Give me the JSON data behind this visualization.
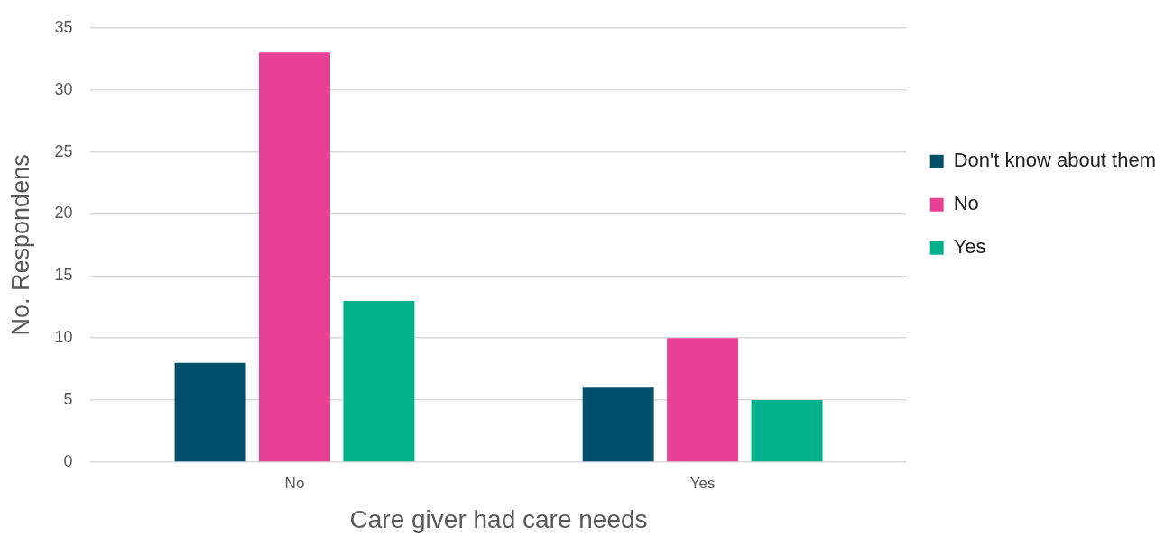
{
  "chart_data": {
    "type": "bar",
    "xlabel": "Care giver had care needs",
    "ylabel": "No. Respondens",
    "categories": [
      "No",
      "Yes"
    ],
    "series": [
      {
        "name": "Don't know about them",
        "color": "#004f6b",
        "values": [
          8,
          6
        ]
      },
      {
        "name": "No",
        "color": "#e84095",
        "values": [
          33,
          10
        ]
      },
      {
        "name": "Yes",
        "color": "#00b18b",
        "values": [
          13,
          5
        ]
      }
    ],
    "ylim": [
      0,
      35
    ],
    "yticks": [
      0,
      5,
      10,
      15,
      20,
      25,
      30,
      35
    ],
    "grid": "y",
    "legend": "right"
  }
}
